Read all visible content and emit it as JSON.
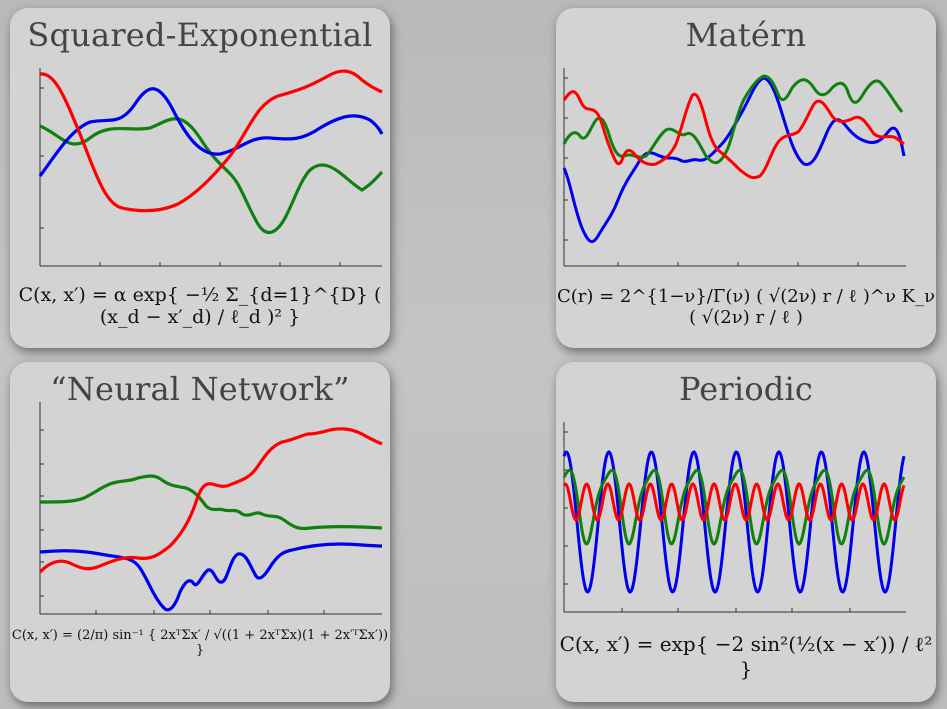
{
  "panels": [
    {
      "title": "Squared-Exponential",
      "formula": "C(x, x′) = α exp{ −½ Σ_{d=1}^{D} ( (x_d − x′_d) / ℓ_d )² }",
      "series_colors": [
        "#ff0000",
        "#0000ee",
        "#108010"
      ]
    },
    {
      "title": "Matérn",
      "formula": "C(r) = 2^{1−ν}/Γ(ν) ( √(2ν) r / ℓ )^ν K_ν ( √(2ν) r / ℓ )",
      "series_colors": [
        "#ff0000",
        "#0000ee",
        "#108010"
      ]
    },
    {
      "title": "“Neural Network”",
      "formula": "C(x, x′) = (2/π) sin⁻¹ { 2xᵀΣx′ / √((1 + 2xᵀΣx)(1 + 2x′ᵀΣx′)) }",
      "series_colors": [
        "#ff0000",
        "#0000ee",
        "#108010"
      ]
    },
    {
      "title": "Periodic",
      "formula": "C(x, x′) = exp{ −2 sin²(½(x − x′)) / ℓ² }",
      "series_colors": [
        "#ff0000",
        "#0000ee",
        "#108010"
      ]
    }
  ]
}
